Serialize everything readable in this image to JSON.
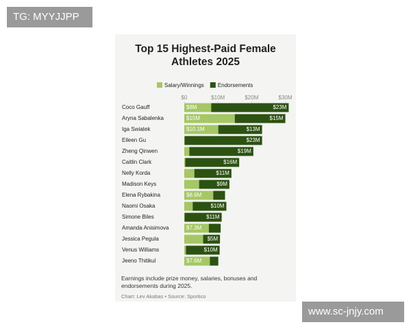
{
  "chart_data": {
    "type": "stacked-bar-horizontal",
    "title": "Top 15 Highest-Paid Female Athletes 2025",
    "categories": [
      "Coco Gauff",
      "Aryna Sabalenka",
      "Iga Swiatek",
      "Eileen Gu",
      "Zheng Qinwen",
      "Caitlin Clark",
      "Nelly Korda",
      "Madison Keys",
      "Elena Rybakina",
      "Naomi Osaka",
      "Simone Biles",
      "Amanda Anisimova",
      "Jessica Pegula",
      "Venus Williams",
      "Jeeno Thitikul"
    ],
    "series": [
      {
        "name": "Salary/Winnings",
        "color": "#a5c765",
        "values": [
          8,
          15,
          10.1,
          0.1,
          1.5,
          0.3,
          3,
          4.4,
          8.6,
          2.5,
          0.1,
          7.3,
          5.6,
          0.5,
          7.6
        ],
        "value_labels": [
          "$8M",
          "$15M",
          "$10.1M",
          null,
          null,
          null,
          null,
          null,
          "$8.6M",
          null,
          null,
          "$7.3M",
          null,
          null,
          "$7.6M"
        ]
      },
      {
        "name": "Endorsements",
        "color": "#2c5212",
        "values": [
          23,
          15,
          13,
          23,
          19,
          16,
          11,
          9,
          3.5,
          10,
          11,
          3.5,
          5,
          10,
          2.5
        ],
        "value_labels": [
          "$23M",
          "$15M",
          "$13M",
          "$23M",
          "$19M",
          "$16M",
          "$11M",
          "$9M",
          null,
          "$10M",
          "$11M",
          null,
          "$5M",
          "$10M",
          null
        ]
      }
    ],
    "xlim": [
      0,
      30.5
    ],
    "xticks": [
      {
        "value": 0,
        "label": "$0"
      },
      {
        "value": 10,
        "label": "$10M"
      },
      {
        "value": 20,
        "label": "$20M"
      },
      {
        "value": 30,
        "label": "$30M"
      }
    ],
    "grid": false,
    "legend": "top",
    "note": "Earnings include prize money, salaries, bonuses and endorsements during 2025.",
    "source": "Chart: Lev Akabas • Source: Sportico"
  },
  "overlays": {
    "top_left": "TG: MYYJJPP",
    "bottom_right": "www.sc-jnjy.com"
  }
}
